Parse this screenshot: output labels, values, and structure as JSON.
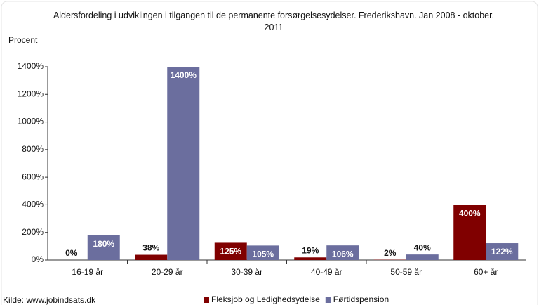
{
  "chart_data": {
    "type": "bar",
    "title": "Aldersfordeling i udviklingen i tilgangen til de permanente forsørgelsesydelser. Frederikshavn. Jan 2008 - oktober. 2011",
    "y_label": "Procent",
    "source": "Kilde: www.jobindsats.dk",
    "categories": [
      "16-19 år",
      "20-29 år",
      "30-39 år",
      "40-49 år",
      "50-59 år",
      "60+ år"
    ],
    "series": [
      {
        "name": "Fleksjob og Ledighedsydelse",
        "color": "#800000",
        "values": [
          0,
          38,
          125,
          19,
          2,
          400
        ],
        "value_labels": [
          "0%",
          "38%",
          "125%",
          "19%",
          "2%",
          "400%"
        ]
      },
      {
        "name": "Førtidspension",
        "color": "#6b6e9e",
        "values": [
          180,
          1400,
          105,
          106,
          40,
          122
        ],
        "value_labels": [
          "180%",
          "1400%",
          "105%",
          "106%",
          "40%",
          "122%"
        ]
      }
    ],
    "ylim": [
      0,
      1400
    ],
    "yticks": [
      {
        "value": 0,
        "label": "0%"
      },
      {
        "value": 200,
        "label": "200%"
      },
      {
        "value": 400,
        "label": "400%"
      },
      {
        "value": 600,
        "label": "600%"
      },
      {
        "value": 800,
        "label": "800%"
      },
      {
        "value": 1000,
        "label": "1000%"
      },
      {
        "value": 1200,
        "label": "1200%"
      },
      {
        "value": 1400,
        "label": "1400%"
      }
    ],
    "legend": "bottom"
  }
}
